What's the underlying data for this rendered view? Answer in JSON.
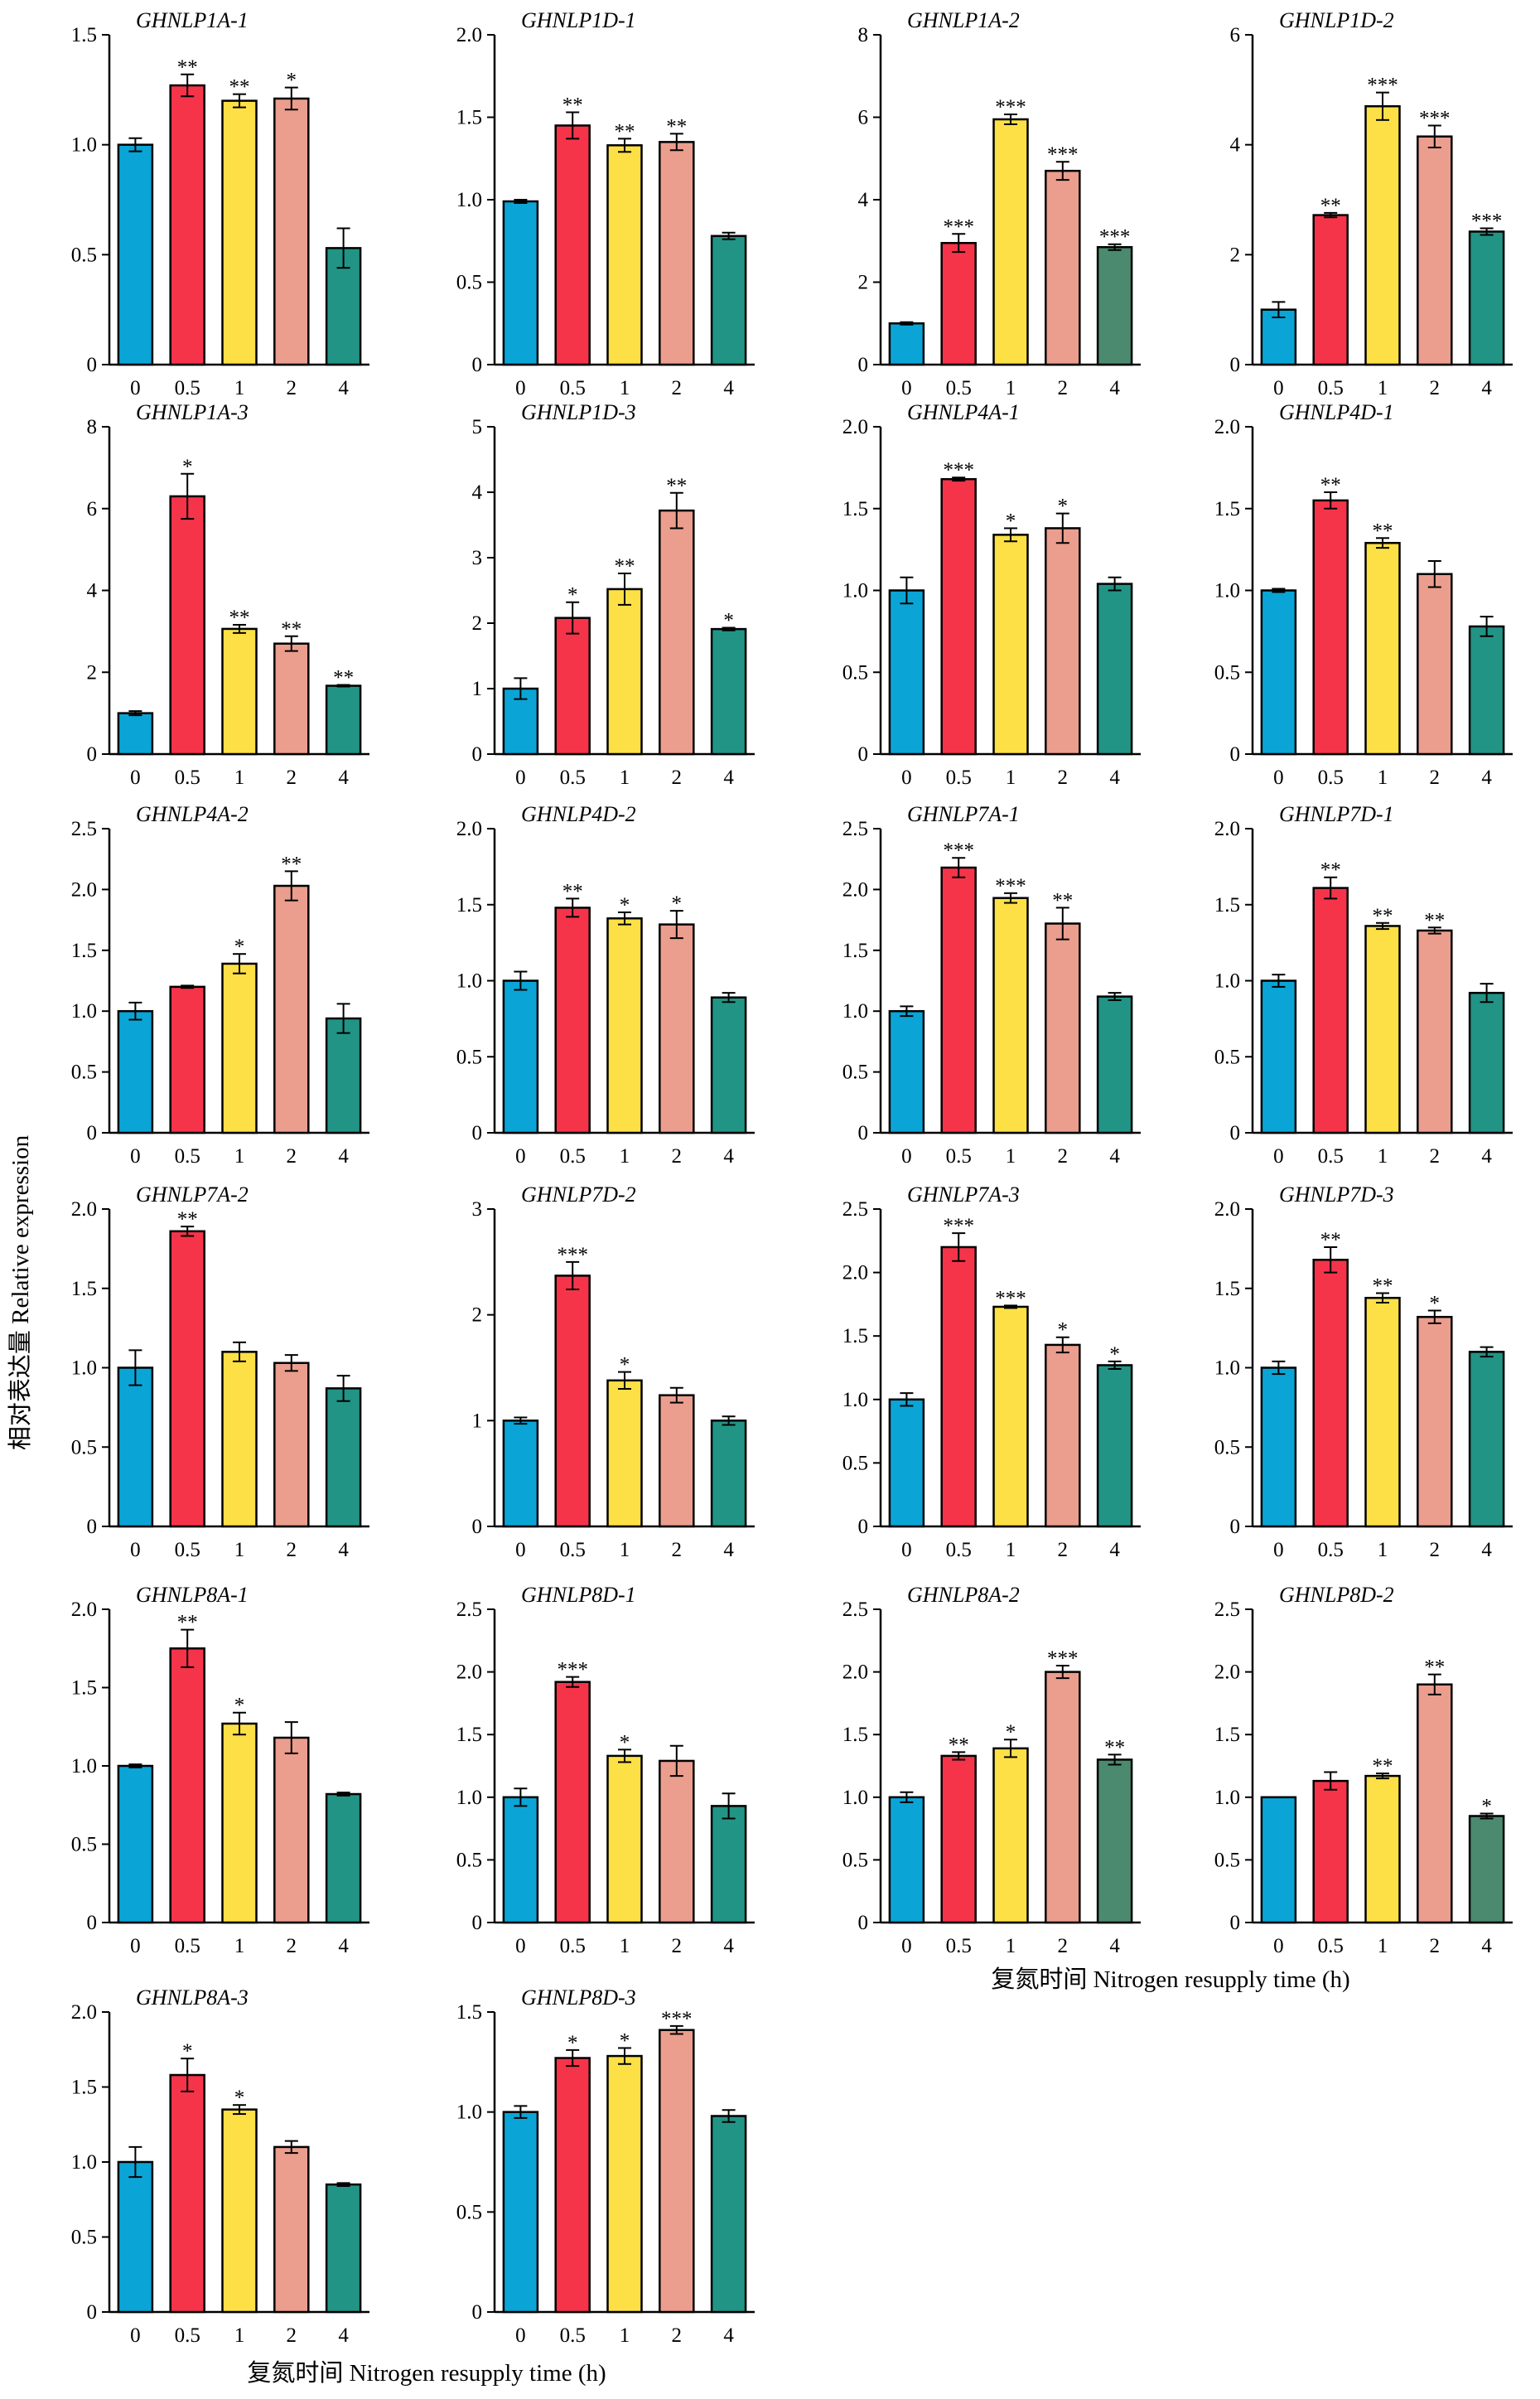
{
  "figure": {
    "ylabel": "相对表达量 Relative expression",
    "xlabel": "复氮时间 Nitrogen resupply time (h)",
    "colors": [
      "#0aa5d6",
      "#f5344a",
      "#fde046",
      "#eb9e8e",
      "#229485"
    ],
    "alt_color_4": "#4b8a6e"
  },
  "chart_data": [
    {
      "type": "bar",
      "title": "GHNLP1A-1",
      "categories": [
        "0",
        "0.5",
        "1",
        "2",
        "4"
      ],
      "values": [
        1.0,
        1.27,
        1.2,
        1.21,
        0.53
      ],
      "errors": [
        0.03,
        0.05,
        0.03,
        0.05,
        0.09
      ],
      "significance": [
        "",
        "**",
        "**",
        "*",
        ""
      ],
      "ylim": [
        0,
        1.5
      ],
      "yticks": [
        "0",
        "0.5",
        "1.0",
        "1.5"
      ]
    },
    {
      "type": "bar",
      "title": "GHNLP1D-1",
      "categories": [
        "0",
        "0.5",
        "1",
        "2",
        "4"
      ],
      "values": [
        0.99,
        1.45,
        1.33,
        1.35,
        0.78
      ],
      "errors": [
        0.01,
        0.08,
        0.04,
        0.05,
        0.02
      ],
      "significance": [
        "",
        "**",
        "**",
        "**",
        ""
      ],
      "ylim": [
        0,
        2.0
      ],
      "yticks": [
        "0",
        "0.5",
        "1.0",
        "1.5",
        "2.0"
      ]
    },
    {
      "type": "bar",
      "title": "GHNLP1A-2",
      "categories": [
        "0",
        "0.5",
        "1",
        "2",
        "4"
      ],
      "values": [
        1.0,
        2.95,
        5.95,
        4.7,
        2.85
      ],
      "errors": [
        0.03,
        0.22,
        0.12,
        0.22,
        0.07
      ],
      "significance": [
        "",
        "***",
        "***",
        "***",
        "***"
      ],
      "ylim": [
        0,
        8
      ],
      "yticks": [
        "0",
        "2",
        "4",
        "6",
        "8"
      ],
      "alt_last_color": true
    },
    {
      "type": "bar",
      "title": "GHNLP1D-2",
      "categories": [
        "0",
        "0.5",
        "1",
        "2",
        "4"
      ],
      "values": [
        1.0,
        2.72,
        4.7,
        4.15,
        2.42
      ],
      "errors": [
        0.14,
        0.04,
        0.25,
        0.2,
        0.06
      ],
      "significance": [
        "",
        "**",
        "***",
        "***",
        "***"
      ],
      "ylim": [
        0,
        6
      ],
      "yticks": [
        "0",
        "2",
        "4",
        "6"
      ]
    },
    {
      "type": "bar",
      "title": "GHNLP1A-3",
      "categories": [
        "0",
        "0.5",
        "1",
        "2",
        "4"
      ],
      "values": [
        1.0,
        6.3,
        3.06,
        2.7,
        1.67
      ],
      "errors": [
        0.05,
        0.55,
        0.1,
        0.18,
        0.02
      ],
      "significance": [
        "",
        "*",
        "**",
        "**",
        "**"
      ],
      "ylim": [
        0,
        8
      ],
      "yticks": [
        "0",
        "2",
        "4",
        "6",
        "8"
      ]
    },
    {
      "type": "bar",
      "title": "GHNLP1D-3",
      "categories": [
        "0",
        "0.5",
        "1",
        "2",
        "4"
      ],
      "values": [
        1.0,
        2.08,
        2.52,
        3.72,
        1.91
      ],
      "errors": [
        0.16,
        0.24,
        0.24,
        0.27,
        0.02
      ],
      "significance": [
        "",
        "*",
        "**",
        "**",
        "*"
      ],
      "ylim": [
        0,
        5
      ],
      "yticks": [
        "0",
        "1",
        "2",
        "3",
        "4",
        "5"
      ]
    },
    {
      "type": "bar",
      "title": "GHNLP4A-1",
      "categories": [
        "0",
        "0.5",
        "1",
        "2",
        "4"
      ],
      "values": [
        1.0,
        1.68,
        1.34,
        1.38,
        1.04
      ],
      "errors": [
        0.08,
        0.01,
        0.04,
        0.09,
        0.04
      ],
      "significance": [
        "",
        "***",
        "*",
        "*",
        ""
      ],
      "ylim": [
        0,
        2.0
      ],
      "yticks": [
        "0",
        "0.5",
        "1.0",
        "1.5",
        "2.0"
      ]
    },
    {
      "type": "bar",
      "title": "GHNLP4D-1",
      "categories": [
        "0",
        "0.5",
        "1",
        "2",
        "4"
      ],
      "values": [
        1.0,
        1.55,
        1.29,
        1.1,
        0.78
      ],
      "errors": [
        0.01,
        0.05,
        0.03,
        0.08,
        0.06
      ],
      "significance": [
        "",
        "**",
        "**",
        "",
        ""
      ],
      "ylim": [
        0,
        2.0
      ],
      "yticks": [
        "0",
        "0.5",
        "1.0",
        "1.5",
        "2.0"
      ]
    },
    {
      "type": "bar",
      "title": "GHNLP4A-2",
      "categories": [
        "0",
        "0.5",
        "1",
        "2",
        "4"
      ],
      "values": [
        1.0,
        1.2,
        1.39,
        2.03,
        0.94
      ],
      "errors": [
        0.07,
        0.01,
        0.08,
        0.12,
        0.12
      ],
      "significance": [
        "",
        "",
        "*",
        "**",
        ""
      ],
      "ylim": [
        0,
        2.5
      ],
      "yticks": [
        "0",
        "0.5",
        "1.0",
        "1.5",
        "2.0",
        "2.5"
      ]
    },
    {
      "type": "bar",
      "title": "GHNLP4D-2",
      "categories": [
        "0",
        "0.5",
        "1",
        "2",
        "4"
      ],
      "values": [
        1.0,
        1.48,
        1.41,
        1.37,
        0.89
      ],
      "errors": [
        0.06,
        0.06,
        0.04,
        0.09,
        0.03
      ],
      "significance": [
        "",
        "**",
        "*",
        "*",
        ""
      ],
      "ylim": [
        0,
        2.0
      ],
      "yticks": [
        "0",
        "0.5",
        "1.0",
        "1.5",
        "2.0"
      ]
    },
    {
      "type": "bar",
      "title": "GHNLP7A-1",
      "categories": [
        "0",
        "0.5",
        "1",
        "2",
        "4"
      ],
      "values": [
        1.0,
        2.18,
        1.93,
        1.72,
        1.12
      ],
      "errors": [
        0.04,
        0.08,
        0.04,
        0.13,
        0.03
      ],
      "significance": [
        "",
        "***",
        "***",
        "**",
        ""
      ],
      "ylim": [
        0,
        2.5
      ],
      "yticks": [
        "0",
        "0.5",
        "1.0",
        "1.5",
        "2.0",
        "2.5"
      ]
    },
    {
      "type": "bar",
      "title": "GHNLP7D-1",
      "categories": [
        "0",
        "0.5",
        "1",
        "2",
        "4"
      ],
      "values": [
        1.0,
        1.61,
        1.36,
        1.33,
        0.92
      ],
      "errors": [
        0.04,
        0.07,
        0.02,
        0.02,
        0.06
      ],
      "significance": [
        "",
        "**",
        "**",
        "**",
        ""
      ],
      "ylim": [
        0,
        2.0
      ],
      "yticks": [
        "0",
        "0.5",
        "1.0",
        "1.5",
        "2.0"
      ]
    },
    {
      "type": "bar",
      "title": "GHNLP7A-2",
      "categories": [
        "0",
        "0.5",
        "1",
        "2",
        "4"
      ],
      "values": [
        1.0,
        1.86,
        1.1,
        1.03,
        0.87
      ],
      "errors": [
        0.11,
        0.03,
        0.06,
        0.05,
        0.08
      ],
      "significance": [
        "",
        "**",
        "",
        "",
        ""
      ],
      "ylim": [
        0,
        2.0
      ],
      "yticks": [
        "0",
        "0.5",
        "1.0",
        "1.5",
        "2.0"
      ]
    },
    {
      "type": "bar",
      "title": "GHNLP7D-2",
      "categories": [
        "0",
        "0.5",
        "1",
        "2",
        "4"
      ],
      "values": [
        1.0,
        2.37,
        1.38,
        1.24,
        1.0
      ],
      "errors": [
        0.03,
        0.13,
        0.08,
        0.07,
        0.04
      ],
      "significance": [
        "",
        "***",
        "*",
        "",
        ""
      ],
      "ylim": [
        0,
        3
      ],
      "yticks": [
        "0",
        "1",
        "2",
        "3"
      ]
    },
    {
      "type": "bar",
      "title": "GHNLP7A-3",
      "categories": [
        "0",
        "0.5",
        "1",
        "2",
        "4"
      ],
      "values": [
        1.0,
        2.2,
        1.73,
        1.43,
        1.27
      ],
      "errors": [
        0.05,
        0.11,
        0.01,
        0.06,
        0.03
      ],
      "significance": [
        "",
        "***",
        "***",
        "*",
        "*"
      ],
      "ylim": [
        0,
        2.5
      ],
      "yticks": [
        "0",
        "0.5",
        "1.0",
        "1.5",
        "2.0",
        "2.5"
      ]
    },
    {
      "type": "bar",
      "title": "GHNLP7D-3",
      "categories": [
        "0",
        "0.5",
        "1",
        "2",
        "4"
      ],
      "values": [
        1.0,
        1.68,
        1.44,
        1.32,
        1.1
      ],
      "errors": [
        0.04,
        0.08,
        0.03,
        0.04,
        0.03
      ],
      "significance": [
        "",
        "**",
        "**",
        "*",
        ""
      ],
      "ylim": [
        0,
        2.0
      ],
      "yticks": [
        "0",
        "0.5",
        "1.0",
        "1.5",
        "2.0"
      ]
    },
    {
      "type": "bar",
      "title": "GHNLP8A-1",
      "categories": [
        "0",
        "0.5",
        "1",
        "2",
        "4"
      ],
      "values": [
        1.0,
        1.75,
        1.27,
        1.18,
        0.82
      ],
      "errors": [
        0.01,
        0.12,
        0.07,
        0.1,
        0.01
      ],
      "significance": [
        "",
        "**",
        "*",
        "",
        ""
      ],
      "ylim": [
        0,
        2.0
      ],
      "yticks": [
        "0",
        "0.5",
        "1.0",
        "1.5",
        "2.0"
      ]
    },
    {
      "type": "bar",
      "title": "GHNLP8D-1",
      "categories": [
        "0",
        "0.5",
        "1",
        "2",
        "4"
      ],
      "values": [
        1.0,
        1.92,
        1.33,
        1.29,
        0.93
      ],
      "errors": [
        0.07,
        0.04,
        0.05,
        0.12,
        0.1
      ],
      "significance": [
        "",
        "***",
        "*",
        "",
        ""
      ],
      "ylim": [
        0,
        2.5
      ],
      "yticks": [
        "0",
        "0.5",
        "1.0",
        "1.5",
        "2.0",
        "2.5"
      ]
    },
    {
      "type": "bar",
      "title": "GHNLP8A-2",
      "categories": [
        "0",
        "0.5",
        "1",
        "2",
        "4"
      ],
      "values": [
        1.0,
        1.33,
        1.39,
        2.0,
        1.3
      ],
      "errors": [
        0.04,
        0.03,
        0.07,
        0.05,
        0.04
      ],
      "significance": [
        "",
        "**",
        "*",
        "***",
        "**"
      ],
      "ylim": [
        0,
        2.5
      ],
      "yticks": [
        "0",
        "0.5",
        "1.0",
        "1.5",
        "2.0",
        "2.5"
      ],
      "alt_last_color": true
    },
    {
      "type": "bar",
      "title": "GHNLP8D-2",
      "categories": [
        "0",
        "0.5",
        "1",
        "2",
        "4"
      ],
      "values": [
        1.0,
        1.13,
        1.17,
        1.9,
        0.85
      ],
      "errors": [
        0.0,
        0.07,
        0.02,
        0.08,
        0.02
      ],
      "significance": [
        "",
        "",
        "**",
        "**",
        "*"
      ],
      "ylim": [
        0,
        2.5
      ],
      "yticks": [
        "0",
        "0.5",
        "1.0",
        "1.5",
        "2.0",
        "2.5"
      ],
      "alt_last_color": true
    },
    {
      "type": "bar",
      "title": "GHNLP8A-3",
      "categories": [
        "0",
        "0.5",
        "1",
        "2",
        "4"
      ],
      "values": [
        1.0,
        1.58,
        1.35,
        1.1,
        0.85
      ],
      "errors": [
        0.1,
        0.11,
        0.03,
        0.04,
        0.01
      ],
      "significance": [
        "",
        "*",
        "*",
        "",
        ""
      ],
      "ylim": [
        0,
        2.0
      ],
      "yticks": [
        "0",
        "0.5",
        "1.0",
        "1.5",
        "2.0"
      ]
    },
    {
      "type": "bar",
      "title": "GHNLP8D-3",
      "categories": [
        "0",
        "0.5",
        "1",
        "2",
        "4"
      ],
      "values": [
        1.0,
        1.27,
        1.28,
        1.41,
        0.98
      ],
      "errors": [
        0.03,
        0.04,
        0.04,
        0.02,
        0.03
      ],
      "significance": [
        "",
        "*",
        "*",
        "***",
        ""
      ],
      "ylim": [
        0,
        1.5
      ],
      "yticks": [
        "0",
        "0.5",
        "1.0",
        "1.5"
      ]
    }
  ]
}
